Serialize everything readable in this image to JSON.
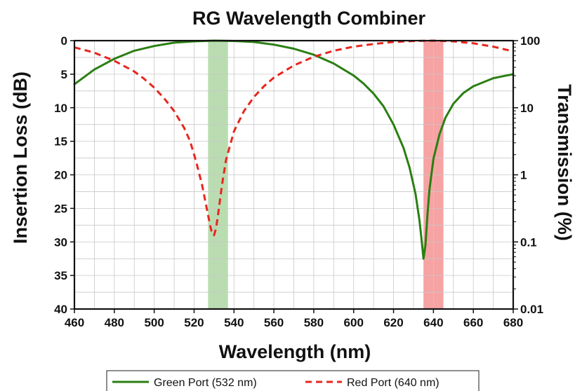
{
  "chart_data": {
    "type": "line",
    "title": "RG Wavelength Combiner",
    "xlabel": "Wavelength (nm)",
    "ylabel_left": "Insertion Loss (dB)",
    "ylabel_right": "Transmission (%)",
    "xlim": [
      460,
      680
    ],
    "ylim_left": [
      0,
      40
    ],
    "ylim_right": [
      0.01,
      100
    ],
    "right_axis_scale": "log",
    "left_axis_inverted": true,
    "grid": true,
    "legend_position": "bottom",
    "x_ticks": [
      "460",
      "480",
      "500",
      "520",
      "540",
      "560",
      "580",
      "600",
      "620",
      "640",
      "660",
      "680"
    ],
    "y_ticks_left": [
      "0",
      "5",
      "10",
      "15",
      "20",
      "25",
      "30",
      "35",
      "40"
    ],
    "y_ticks_right": [
      "100",
      "10",
      "1",
      "0.1",
      "0.01"
    ],
    "highlight_bands": [
      {
        "x": [
          527,
          537
        ],
        "color": "#b9ddb0"
      },
      {
        "x": [
          635,
          645
        ],
        "color": "#f6a3a3"
      }
    ],
    "series": [
      {
        "name": "Green Port (532 nm)",
        "color": "#2a7f12",
        "style": "solid",
        "x": [
          460,
          470,
          480,
          490,
          500,
          510,
          520,
          530,
          540,
          550,
          560,
          570,
          580,
          590,
          600,
          605,
          610,
          615,
          620,
          625,
          628,
          631,
          633,
          634,
          635,
          636,
          637,
          638,
          640,
          643,
          646,
          650,
          655,
          660,
          665,
          670,
          675,
          680
        ],
        "y": [
          6.5,
          4.3,
          2.7,
          1.5,
          0.8,
          0.3,
          0.1,
          0.0,
          0.05,
          0.2,
          0.6,
          1.2,
          2.1,
          3.4,
          5.2,
          6.4,
          7.9,
          9.8,
          12.5,
          16.0,
          18.9,
          22.8,
          26.8,
          29.5,
          32.5,
          30.5,
          26.0,
          22.2,
          17.6,
          14.0,
          11.5,
          9.4,
          7.8,
          6.8,
          6.2,
          5.6,
          5.3,
          5.0
        ]
      },
      {
        "name": "Red Port (640 nm)",
        "color": "#e8261f",
        "style": "dashed",
        "x": [
          460,
          465,
          470,
          475,
          480,
          485,
          490,
          495,
          500,
          505,
          510,
          515,
          518,
          521,
          524,
          526,
          528,
          529,
          530,
          531,
          532,
          534,
          536,
          540,
          545,
          550,
          555,
          560,
          570,
          580,
          590,
          600,
          610,
          620,
          630,
          640,
          650,
          660,
          670,
          680
        ],
        "y": [
          1.0,
          1.4,
          1.8,
          2.4,
          3.0,
          3.8,
          4.6,
          5.7,
          7.0,
          8.6,
          10.5,
          13.0,
          15.0,
          18.0,
          21.5,
          24.5,
          27.5,
          28.7,
          29.0,
          28.0,
          26.0,
          21.5,
          17.8,
          13.5,
          10.5,
          8.4,
          6.8,
          5.5,
          3.7,
          2.4,
          1.5,
          0.9,
          0.5,
          0.2,
          0.05,
          0.0,
          0.1,
          0.4,
          0.9,
          1.6
        ]
      }
    ]
  }
}
